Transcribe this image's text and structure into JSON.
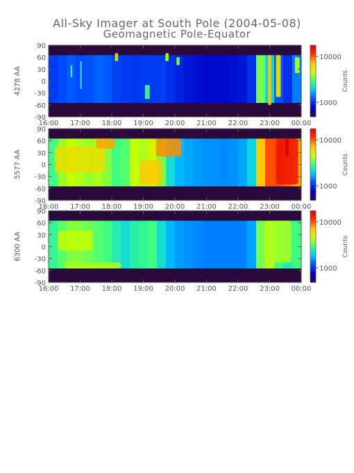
{
  "title": "All-Sky Imager at South Pole (2004-05-08)",
  "subtitle": "Geomagnetic Pole-Equator",
  "colors": {
    "background_dark": "#2a0a3a",
    "axis": "#555555",
    "colormap": [
      "#2b0050",
      "#0000c8",
      "#0050ff",
      "#00c8ff",
      "#40ff80",
      "#c8ff00",
      "#ffc800",
      "#ff3000",
      "#e00000"
    ]
  },
  "chart_data": [
    {
      "type": "heatmap",
      "ylabel": "4278 AA",
      "x_ticks": [
        "16:00",
        "17:00",
        "18:00",
        "19:00",
        "20:00",
        "21:00",
        "22:00",
        "23:00",
        "00:00"
      ],
      "y_ticks": [
        90,
        60,
        30,
        0,
        -30,
        -60,
        -90
      ],
      "xlim": [
        16,
        24
      ],
      "ylim": [
        -90,
        90
      ],
      "colorbar": {
        "label": "Counts",
        "ticks": [
          "10000",
          "1000"
        ],
        "log": true
      },
      "valid_lat": [
        -55,
        65
      ],
      "intensity_profile": [
        0.22,
        0.24,
        0.26,
        0.24,
        0.25,
        0.27,
        0.26,
        0.23,
        0.22,
        0.21,
        0.22,
        0.22,
        0.22,
        0.2,
        0.18,
        0.16,
        0.15,
        0.14,
        0.14,
        0.14,
        0.15,
        0.16,
        0.2,
        0.55,
        0.4,
        0.25,
        0.2,
        0.3
      ],
      "features": [
        {
          "type": "streak",
          "x": [
            16.7,
            16.75
          ],
          "lat": [
            10,
            40
          ],
          "value": 0.5
        },
        {
          "type": "streak",
          "x": [
            17.0,
            17.05
          ],
          "lat": [
            -20,
            50
          ],
          "value": 0.45
        },
        {
          "type": "streak",
          "x": [
            18.1,
            18.2
          ],
          "lat": [
            50,
            70
          ],
          "value": 0.7
        },
        {
          "type": "streak",
          "x": [
            19.05,
            19.2
          ],
          "lat": [
            -45,
            -10
          ],
          "value": 0.5
        },
        {
          "type": "streak",
          "x": [
            19.7,
            19.8
          ],
          "lat": [
            50,
            70
          ],
          "value": 0.6
        },
        {
          "type": "streak",
          "x": [
            20.05,
            20.15
          ],
          "lat": [
            40,
            60
          ],
          "value": 0.55
        },
        {
          "type": "streak",
          "x": [
            22.95,
            23.05
          ],
          "lat": [
            -60,
            65
          ],
          "value": 0.75
        },
        {
          "type": "streak",
          "x": [
            23.2,
            23.35
          ],
          "lat": [
            -40,
            65
          ],
          "value": 0.7
        },
        {
          "type": "streak",
          "x": [
            23.8,
            23.95
          ],
          "lat": [
            20,
            60
          ],
          "value": 0.6
        }
      ]
    },
    {
      "type": "heatmap",
      "ylabel": "5577 AA",
      "x_ticks": [
        "16:00",
        "17:00",
        "18:00",
        "19:00",
        "20:00",
        "21:00",
        "22:00",
        "23:00",
        "00:00"
      ],
      "y_ticks": [
        90,
        60,
        30,
        0,
        -30,
        -60,
        -90
      ],
      "xlim": [
        16,
        24
      ],
      "ylim": [
        -90,
        90
      ],
      "colorbar": {
        "label": "Counts",
        "ticks": [
          "10000",
          "1000"
        ],
        "log": true
      },
      "valid_lat": [
        -55,
        65
      ],
      "intensity_profile": [
        0.5,
        0.58,
        0.62,
        0.6,
        0.58,
        0.6,
        0.56,
        0.5,
        0.52,
        0.62,
        0.6,
        0.65,
        0.55,
        0.42,
        0.36,
        0.34,
        0.33,
        0.32,
        0.32,
        0.31,
        0.32,
        0.34,
        0.4,
        0.75,
        0.85,
        0.85,
        0.82,
        0.78
      ],
      "features": [
        {
          "type": "blob",
          "x": [
            16.2,
            17.8
          ],
          "lat": [
            -20,
            45
          ],
          "value": 0.7
        },
        {
          "type": "blob",
          "x": [
            17.5,
            18.1
          ],
          "lat": [
            40,
            65
          ],
          "value": 0.78
        },
        {
          "type": "blob",
          "x": [
            18.9,
            19.6
          ],
          "lat": [
            -50,
            10
          ],
          "value": 0.75
        },
        {
          "type": "blob",
          "x": [
            19.4,
            20.2
          ],
          "lat": [
            20,
            65
          ],
          "value": 0.8
        },
        {
          "type": "blob",
          "x": [
            23.2,
            23.9
          ],
          "lat": [
            -50,
            65
          ],
          "value": 0.95
        },
        {
          "type": "streak",
          "x": [
            23.5,
            23.6
          ],
          "lat": [
            20,
            65
          ],
          "value": 1.0
        }
      ]
    },
    {
      "type": "heatmap",
      "ylabel": "6300 AA",
      "x_ticks": [
        "16:00",
        "17:00",
        "18:00",
        "19:00",
        "20:00",
        "21:00",
        "22:00",
        "23:00",
        "00:00"
      ],
      "y_ticks": [
        90,
        60,
        30,
        0,
        -30,
        -60,
        -90
      ],
      "xlim": [
        16,
        24
      ],
      "ylim": [
        -90,
        90
      ],
      "colorbar": {
        "label": "Counts",
        "ticks": [
          "10000",
          "1000"
        ],
        "log": true
      },
      "valid_lat": [
        -55,
        65
      ],
      "intensity_profile": [
        0.48,
        0.52,
        0.56,
        0.56,
        0.54,
        0.52,
        0.5,
        0.45,
        0.42,
        0.46,
        0.48,
        0.5,
        0.42,
        0.36,
        0.33,
        0.32,
        0.31,
        0.3,
        0.3,
        0.3,
        0.3,
        0.3,
        0.34,
        0.55,
        0.6,
        0.5,
        0.45,
        0.5
      ],
      "features": [
        {
          "type": "blob",
          "x": [
            16.3,
            17.4
          ],
          "lat": [
            -10,
            40
          ],
          "value": 0.62
        },
        {
          "type": "blob",
          "x": [
            16.5,
            18.3
          ],
          "lat": [
            -55,
            -40
          ],
          "value": 0.6
        },
        {
          "type": "blob",
          "x": [
            23.0,
            23.7
          ],
          "lat": [
            -40,
            65
          ],
          "value": 0.6
        }
      ]
    }
  ]
}
